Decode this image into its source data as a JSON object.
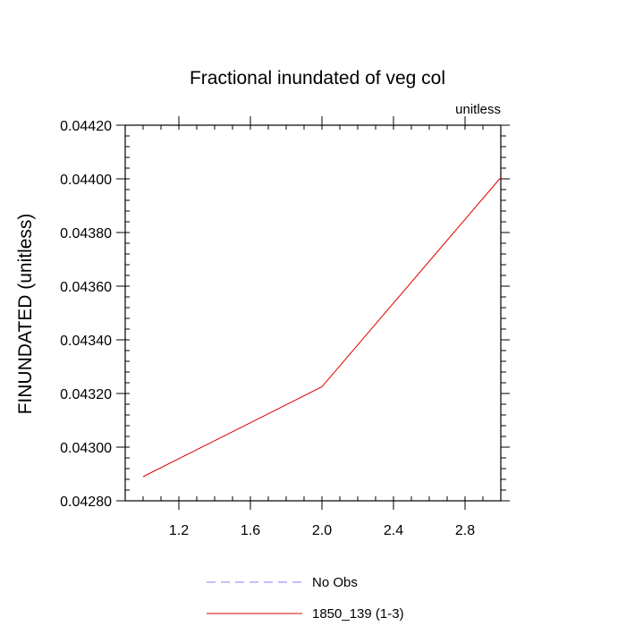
{
  "chart_data": {
    "type": "line",
    "title": "Fractional inundated of veg col",
    "units_label": "unitless",
    "xlabel": "",
    "ylabel": "FINUNDATED  (unitless)",
    "xlim": [
      0.9,
      3.0
    ],
    "ylim": [
      0.0428,
      0.0442
    ],
    "x_ticks": [
      1.2,
      1.6,
      2.0,
      2.4,
      2.8
    ],
    "x_tick_labels": [
      "1.2",
      "1.6",
      "2.0",
      "2.4",
      "2.8"
    ],
    "y_ticks": [
      0.0428,
      0.043,
      0.0432,
      0.0434,
      0.0436,
      0.0438,
      0.044,
      0.0442
    ],
    "y_tick_labels": [
      "0.04280",
      "0.04300",
      "0.04320",
      "0.04340",
      "0.04360",
      "0.04380",
      "0.04400",
      "0.04420"
    ],
    "grid": false,
    "legend_position": "bottom-center",
    "series": [
      {
        "name": "No Obs",
        "color": "#8080ff",
        "dash": "dashed",
        "x": [],
        "values": []
      },
      {
        "name": "1850_139 (1-3)",
        "color": "#e00000",
        "dash": "solid",
        "x": [
          1.0,
          2.0,
          3.0
        ],
        "values": [
          0.04289,
          0.043225,
          0.044005
        ]
      }
    ]
  }
}
